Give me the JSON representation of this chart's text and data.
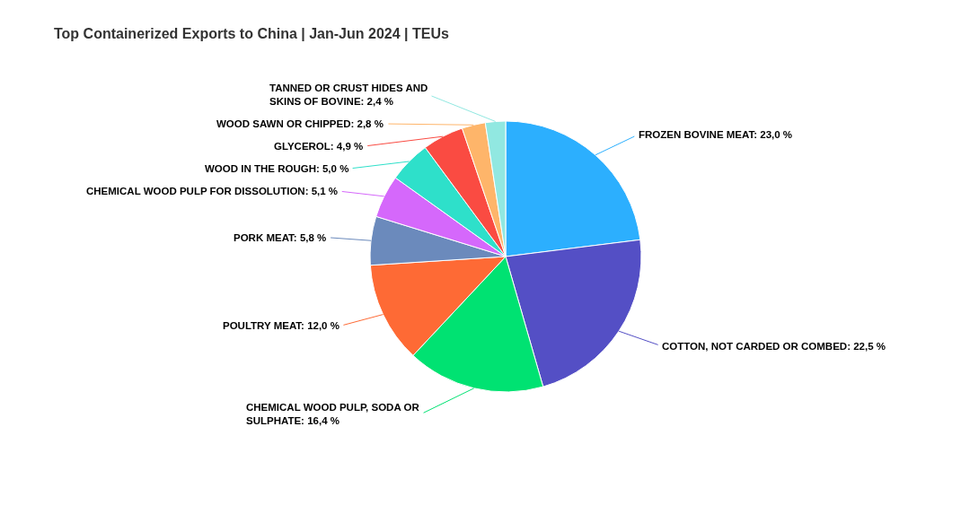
{
  "chart_data": {
    "type": "pie",
    "title": "Top Containerized Exports to China | Jan-Jun 2024 | TEUs",
    "categories": [
      "FROZEN BOVINE MEAT",
      "COTTON, NOT CARDED OR COMBED",
      "CHEMICAL WOOD PULP, SODA OR SULPHATE",
      "POULTRY MEAT",
      "PORK MEAT",
      "CHEMICAL WOOD PULP FOR DISSOLUTION",
      "WOOD IN THE ROUGH",
      "GLYCEROL",
      "WOOD SAWN OR CHIPPED",
      "TANNED OR CRUST HIDES AND SKINS OF BOVINE"
    ],
    "values": [
      23.0,
      22.5,
      16.4,
      12.0,
      5.8,
      5.1,
      5.0,
      4.9,
      2.8,
      2.4
    ],
    "colors": [
      "#2caffe",
      "#544fc5",
      "#00e272",
      "#fe6a35",
      "#6b8abc",
      "#d568fb",
      "#2ee0ca",
      "#fa4b42",
      "#feb56a",
      "#91e8e1"
    ],
    "value_labels": [
      "23,0 %",
      "22,5 %",
      "16,4 %",
      "12,0 %",
      "5,8 %",
      "5,1 %",
      "5,0 %",
      "4,9 %",
      "2,8 %",
      "2,4 %"
    ]
  }
}
